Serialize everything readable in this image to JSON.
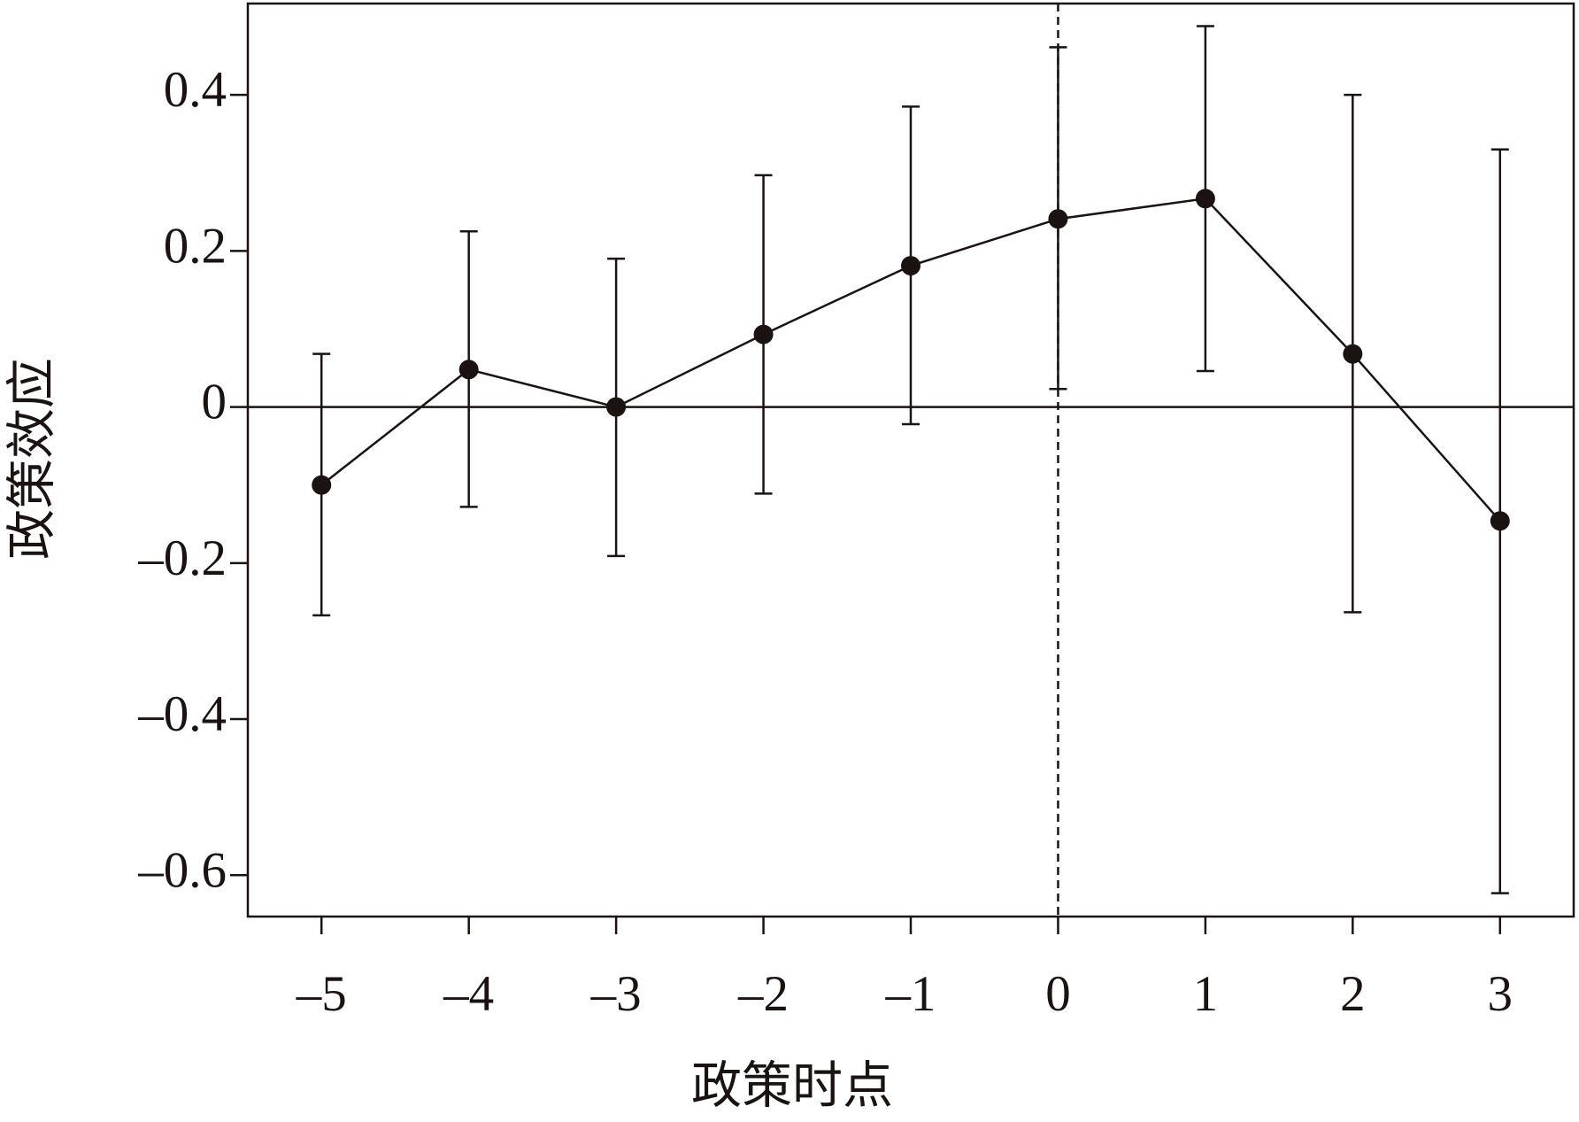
{
  "chart_data": {
    "type": "errorbar-line",
    "x_label": "政策时点",
    "y_label": "政策效应",
    "x": [
      -5,
      -4,
      -3,
      -2,
      -1,
      0,
      1,
      2,
      3
    ],
    "series": [
      {
        "color": "#1a1311",
        "values": [
          -0.1,
          0.048,
          0.0,
          0.093,
          0.181,
          0.241,
          0.267,
          0.068,
          -0.146
        ],
        "lower": [
          -0.267,
          -0.128,
          -0.191,
          -0.111,
          -0.022,
          0.023,
          0.046,
          -0.263,
          -0.623
        ],
        "upper": [
          0.068,
          0.225,
          0.19,
          0.297,
          0.385,
          0.461,
          0.488,
          0.4,
          0.33
        ]
      }
    ],
    "xlim": [
      -5.5,
      3.5
    ],
    "xticks": [
      {
        "value": -5,
        "label": "–5"
      },
      {
        "value": -4,
        "label": "–4"
      },
      {
        "value": -3,
        "label": "–3"
      },
      {
        "value": -2,
        "label": "–2"
      },
      {
        "value": -1,
        "label": "–1"
      },
      0,
      1,
      2,
      3
    ],
    "ylim": [
      -0.653,
      0.517
    ],
    "yticks": [
      {
        "value": -0.6,
        "label": "–0.6"
      },
      {
        "value": -0.4,
        "label": "–0.4"
      },
      {
        "value": -0.2,
        "label": "–0.2"
      },
      0,
      0.2,
      0.4
    ],
    "reference_lines": {
      "x": 0,
      "y": 0
    },
    "grid": false
  }
}
